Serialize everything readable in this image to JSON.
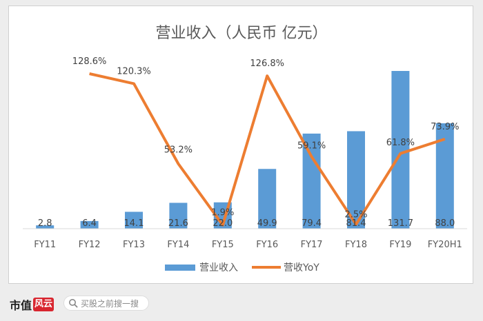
{
  "chart_data": {
    "type": "bar+line",
    "title": "营业收入（人民币 亿元）",
    "categories": [
      "FY11",
      "FY12",
      "FY13",
      "FY14",
      "FY15",
      "FY16",
      "FY17",
      "FY18",
      "FY19",
      "FY20H1"
    ],
    "bar_series": {
      "name": "营业收入",
      "values": [
        2.8,
        6.4,
        14.1,
        21.6,
        22.0,
        49.9,
        79.4,
        81.4,
        131.7,
        88.0
      ],
      "labels": [
        "2.8",
        "6.4",
        "14.1",
        "21.6",
        "22.0",
        "49.9",
        "79.4",
        "81.4",
        "131.7",
        "88.0"
      ],
      "color": "#5b9bd5"
    },
    "line_series": {
      "name": "营收YoY",
      "values": [
        null,
        128.6,
        120.3,
        53.2,
        1.9,
        126.8,
        59.1,
        2.5,
        61.8,
        73.9
      ],
      "labels": [
        "",
        "128.6%",
        "120.3%",
        "53.2%",
        "1.9%",
        "126.8%",
        "59.1%",
        "2.5%",
        "61.8%",
        "73.9%"
      ],
      "color": "#ed7d31"
    },
    "legend_position": "bottom",
    "gridlines": false
  },
  "footer": {
    "brand": "市值",
    "brand_mark": "风云",
    "search_placeholder": "买股之前搜一搜"
  }
}
